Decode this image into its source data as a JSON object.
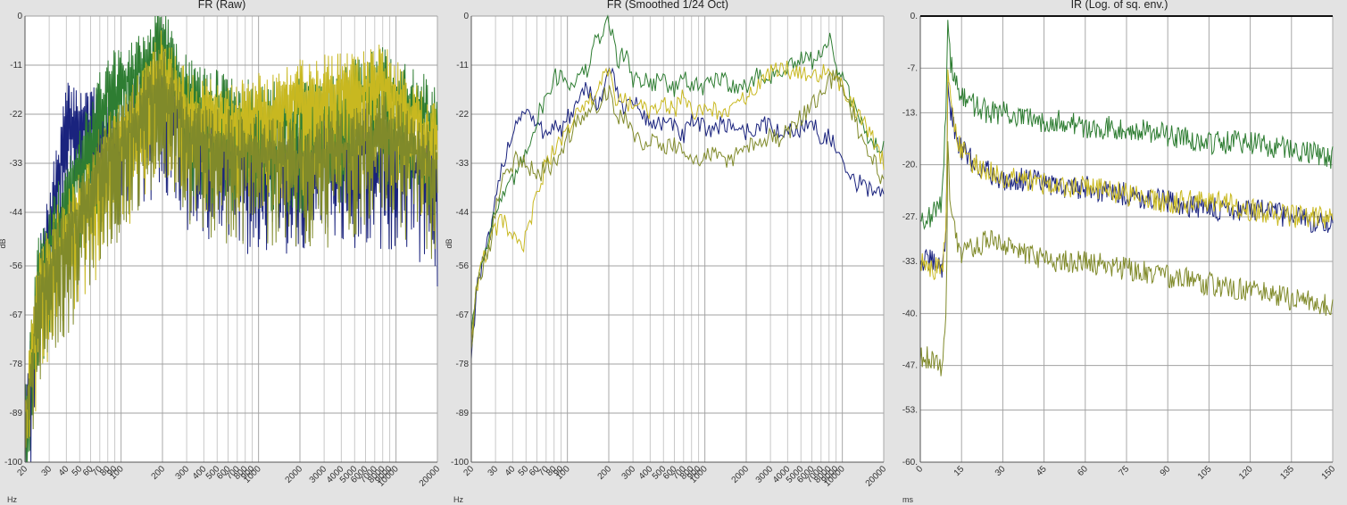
{
  "chart_data": [
    {
      "type": "line",
      "title": "FR (Raw)",
      "xlabel": "Hz",
      "ylabel": "dB",
      "x_scale": "log",
      "xlim": [
        20,
        20000
      ],
      "ylim": [
        -100,
        0
      ],
      "y_ticks": [
        "0",
        "-11",
        "-22",
        "-33",
        "-44",
        "-56",
        "-67",
        "-78",
        "-89",
        "-100"
      ],
      "x_ticks": [
        "20",
        "30",
        "40",
        "50",
        "60",
        "70",
        "80",
        "90",
        "100",
        "200",
        "300",
        "400",
        "500",
        "600",
        "700",
        "800",
        "900",
        "1000",
        "2000",
        "3000",
        "4000",
        "5000",
        "6000",
        "7000",
        "8000",
        "9000",
        "10000",
        "20000"
      ],
      "grid": true,
      "series": [
        {
          "color": "#1a237e",
          "x": [
            20,
            25,
            30,
            35,
            40,
            50,
            60,
            70,
            80,
            100,
            130,
            160,
            200,
            250,
            300,
            400,
            500,
            700,
            1000,
            1500,
            2000,
            3000,
            4000,
            5000,
            6000,
            7000,
            8000,
            10000,
            14000,
            17000,
            20000
          ],
          "y": [
            -95,
            -60,
            -47,
            -35,
            -23,
            -23,
            -24,
            -25,
            -27,
            -26,
            -22,
            -20,
            -16,
            -22,
            -26,
            -28,
            -29,
            -31,
            -31,
            -31,
            -31,
            -29,
            -29,
            -30,
            -28,
            -32,
            -30,
            -31,
            -34,
            -30,
            -39
          ]
        },
        {
          "color": "#2e7d32",
          "x": [
            20,
            25,
            30,
            35,
            40,
            50,
            60,
            70,
            80,
            100,
            130,
            160,
            200,
            250,
            300,
            400,
            500,
            700,
            1000,
            1500,
            2000,
            3000,
            4000,
            5000,
            6000,
            7000,
            8000,
            10000,
            14000,
            17000,
            20000
          ],
          "y": [
            -90,
            -58,
            -52,
            -45,
            -40,
            -33,
            -27,
            -20,
            -16,
            -16,
            -12,
            -10,
            -3,
            -14,
            -17,
            -20,
            -20,
            -22,
            -23,
            -23,
            -22,
            -21,
            -20,
            -18,
            -17,
            -16,
            -14,
            -18,
            -20,
            -22,
            -24
          ]
        },
        {
          "color": "#c8b820",
          "x": [
            20,
            25,
            30,
            35,
            40,
            50,
            60,
            70,
            80,
            100,
            130,
            160,
            200,
            250,
            300,
            400,
            500,
            700,
            1000,
            1500,
            2000,
            3000,
            4000,
            5000,
            6000,
            7000,
            8000,
            10000,
            14000,
            17000,
            20000
          ],
          "y": [
            -92,
            -60,
            -55,
            -50,
            -48,
            -43,
            -40,
            -35,
            -30,
            -27,
            -22,
            -16,
            -11,
            -16,
            -20,
            -22,
            -23,
            -22,
            -21,
            -20,
            -18,
            -17,
            -16,
            -17,
            -16,
            -14,
            -14,
            -18,
            -22,
            -27,
            -28
          ]
        },
        {
          "color": "#808a2a",
          "x": [
            20,
            25,
            30,
            35,
            40,
            50,
            60,
            70,
            80,
            100,
            130,
            160,
            200,
            250,
            300,
            400,
            500,
            700,
            1000,
            1500,
            2000,
            3000,
            4000,
            5000,
            6000,
            7000,
            8000,
            10000,
            14000,
            17000,
            20000
          ],
          "y": [
            -93,
            -62,
            -56,
            -52,
            -50,
            -44,
            -38,
            -33,
            -30,
            -28,
            -24,
            -18,
            -14,
            -20,
            -25,
            -27,
            -28,
            -30,
            -31,
            -31,
            -31,
            -30,
            -29,
            -29,
            -28,
            -26,
            -25,
            -26,
            -30,
            -32,
            -33
          ]
        }
      ]
    },
    {
      "type": "line",
      "title": "FR (Smoothed 1/24 Oct)",
      "xlabel": "Hz",
      "ylabel": "dB",
      "x_scale": "log",
      "xlim": [
        20,
        20000
      ],
      "ylim": [
        -100,
        0
      ],
      "y_ticks": [
        "0",
        "-11",
        "-22",
        "-33",
        "-44",
        "-56",
        "-67",
        "-78",
        "-89",
        "-100"
      ],
      "x_ticks": [
        "20",
        "30",
        "40",
        "50",
        "60",
        "70",
        "80",
        "90",
        "100",
        "200",
        "300",
        "400",
        "500",
        "600",
        "700",
        "800",
        "900",
        "1000",
        "2000",
        "3000",
        "4000",
        "5000",
        "6000",
        "7000",
        "8000",
        "9000",
        "10000",
        "20000"
      ],
      "grid": true,
      "series": [
        {
          "color": "#1a237e",
          "x": [
            20,
            22,
            25,
            28,
            30,
            33,
            36,
            40,
            45,
            50,
            60,
            70,
            80,
            90,
            100,
            120,
            140,
            160,
            180,
            200,
            230,
            260,
            300,
            350,
            400,
            500,
            600,
            700,
            800,
            1000,
            1200,
            1500,
            2000,
            2500,
            3000,
            3500,
            4000,
            5000,
            6000,
            7000,
            8000,
            9000,
            10000,
            12000,
            14000,
            17000,
            20000
          ],
          "y": [
            -76,
            -60,
            -54,
            -48,
            -42,
            -35,
            -30,
            -26,
            -22,
            -21,
            -25,
            -26,
            -24,
            -26,
            -23,
            -20,
            -16,
            -19,
            -19,
            -10,
            -18,
            -20,
            -19,
            -22,
            -24,
            -24,
            -25,
            -27,
            -24,
            -25,
            -25,
            -24,
            -26,
            -25,
            -24,
            -27,
            -26,
            -25,
            -24,
            -27,
            -27,
            -30,
            -34,
            -37,
            -38,
            -39,
            -39
          ]
        },
        {
          "color": "#2e7d32",
          "x": [
            20,
            22,
            25,
            28,
            30,
            33,
            36,
            40,
            45,
            50,
            60,
            70,
            80,
            90,
            100,
            120,
            140,
            160,
            180,
            200,
            230,
            260,
            300,
            350,
            400,
            500,
            600,
            700,
            800,
            1000,
            1200,
            1500,
            2000,
            2500,
            3000,
            3500,
            4000,
            5000,
            6000,
            7000,
            8000,
            9000,
            10000,
            12000,
            14000,
            17000,
            20000
          ],
          "y": [
            -70,
            -60,
            -52,
            -47,
            -44,
            -41,
            -40,
            -37,
            -34,
            -30,
            -23,
            -18,
            -14,
            -13,
            -15,
            -14,
            -12,
            -6,
            -4,
            0,
            -10,
            -8,
            -14,
            -14,
            -15,
            -14,
            -17,
            -13,
            -16,
            -16,
            -14,
            -15,
            -16,
            -13,
            -14,
            -12,
            -12,
            -10,
            -10,
            -8,
            -5,
            -11,
            -14,
            -20,
            -25,
            -29,
            -29
          ]
        },
        {
          "color": "#c8b820",
          "x": [
            20,
            22,
            25,
            28,
            30,
            33,
            36,
            40,
            45,
            50,
            60,
            70,
            80,
            90,
            100,
            120,
            140,
            160,
            180,
            200,
            230,
            260,
            300,
            350,
            400,
            500,
            600,
            700,
            800,
            1000,
            1200,
            1500,
            2000,
            2500,
            3000,
            3500,
            4000,
            5000,
            6000,
            7000,
            8000,
            9000,
            10000,
            12000,
            14000,
            17000,
            20000
          ],
          "y": [
            -72,
            -60,
            -54,
            -50,
            -48,
            -46,
            -47,
            -50,
            -52,
            -50,
            -40,
            -33,
            -30,
            -28,
            -25,
            -22,
            -20,
            -17,
            -14,
            -13,
            -20,
            -17,
            -22,
            -19,
            -22,
            -20,
            -21,
            -18,
            -22,
            -21,
            -21,
            -22,
            -18,
            -15,
            -13,
            -12,
            -12,
            -12,
            -13,
            -13,
            -12,
            -14,
            -16,
            -20,
            -24,
            -28,
            -33
          ]
        },
        {
          "color": "#808a2a",
          "x": [
            20,
            22,
            25,
            28,
            30,
            33,
            36,
            40,
            45,
            50,
            60,
            70,
            80,
            90,
            100,
            120,
            140,
            160,
            180,
            200,
            230,
            260,
            300,
            350,
            400,
            500,
            600,
            700,
            800,
            1000,
            1200,
            1500,
            2000,
            2500,
            3000,
            3500,
            4000,
            5000,
            6000,
            7000,
            8000,
            9000,
            10000,
            12000,
            14000,
            17000,
            20000
          ],
          "y": [
            -74,
            -61,
            -55,
            -50,
            -44,
            -37,
            -34,
            -33,
            -32,
            -33,
            -36,
            -34,
            -33,
            -31,
            -27,
            -24,
            -22,
            -20,
            -18,
            -16,
            -24,
            -22,
            -26,
            -28,
            -27,
            -29,
            -29,
            -31,
            -32,
            -32,
            -31,
            -32,
            -30,
            -28,
            -27,
            -28,
            -26,
            -23,
            -20,
            -17,
            -15,
            -13,
            -16,
            -22,
            -28,
            -33,
            -37
          ]
        }
      ]
    },
    {
      "type": "line",
      "title": "IR (Log. of sq. env.)",
      "xlabel": "ms",
      "ylabel": "",
      "x_scale": "linear",
      "xlim": [
        0,
        150
      ],
      "ylim": [
        -60,
        0
      ],
      "y_ticks": [
        "0.",
        "-7.",
        "-13.",
        "-20.",
        "-27.",
        "-33.",
        "-40.",
        "-47.",
        "-53.",
        "-60."
      ],
      "x_ticks": [
        "0",
        "15",
        "30",
        "45",
        "60",
        "75",
        "90",
        "105",
        "120",
        "135",
        "150"
      ],
      "grid": true,
      "series": [
        {
          "color": "#1a237e",
          "x": [
            0,
            4,
            8,
            9.5,
            10,
            11,
            13,
            15,
            20,
            25,
            30,
            40,
            50,
            60,
            75,
            90,
            105,
            120,
            135,
            150
          ],
          "y": [
            -33,
            -33,
            -34,
            -28,
            -8,
            -13,
            -16,
            -18,
            -20,
            -21,
            -22,
            -22,
            -23,
            -23,
            -24,
            -25,
            -26,
            -26,
            -27,
            -28
          ]
        },
        {
          "color": "#2e7d32",
          "x": [
            0,
            4,
            8,
            9.5,
            10,
            11,
            13,
            15,
            20,
            25,
            30,
            40,
            50,
            60,
            75,
            90,
            105,
            120,
            135,
            150
          ],
          "y": [
            -27,
            -27,
            -25,
            -10,
            0,
            -6,
            -9,
            -11,
            -12,
            -13,
            -13,
            -14,
            -14,
            -15,
            -15,
            -16,
            -17,
            -17,
            -18,
            -19
          ]
        },
        {
          "color": "#c8b820",
          "x": [
            0,
            4,
            8,
            9.5,
            10,
            11,
            13,
            15,
            20,
            25,
            30,
            40,
            50,
            60,
            75,
            90,
            105,
            120,
            135,
            150
          ],
          "y": [
            -33,
            -34,
            -34,
            -28,
            -7,
            -12,
            -16,
            -18,
            -20,
            -21,
            -22,
            -22,
            -23,
            -23,
            -24,
            -25,
            -25,
            -26,
            -27,
            -27
          ]
        },
        {
          "color": "#808a2a",
          "x": [
            0,
            4,
            8,
            9.5,
            10,
            11,
            13,
            15,
            20,
            25,
            30,
            40,
            50,
            60,
            75,
            90,
            105,
            120,
            135,
            150
          ],
          "y": [
            -46,
            -46,
            -47,
            -38,
            -17,
            -26,
            -30,
            -32,
            -31,
            -30,
            -31,
            -32,
            -33,
            -33,
            -34,
            -35,
            -36,
            -37,
            -38,
            -39
          ]
        }
      ]
    }
  ]
}
